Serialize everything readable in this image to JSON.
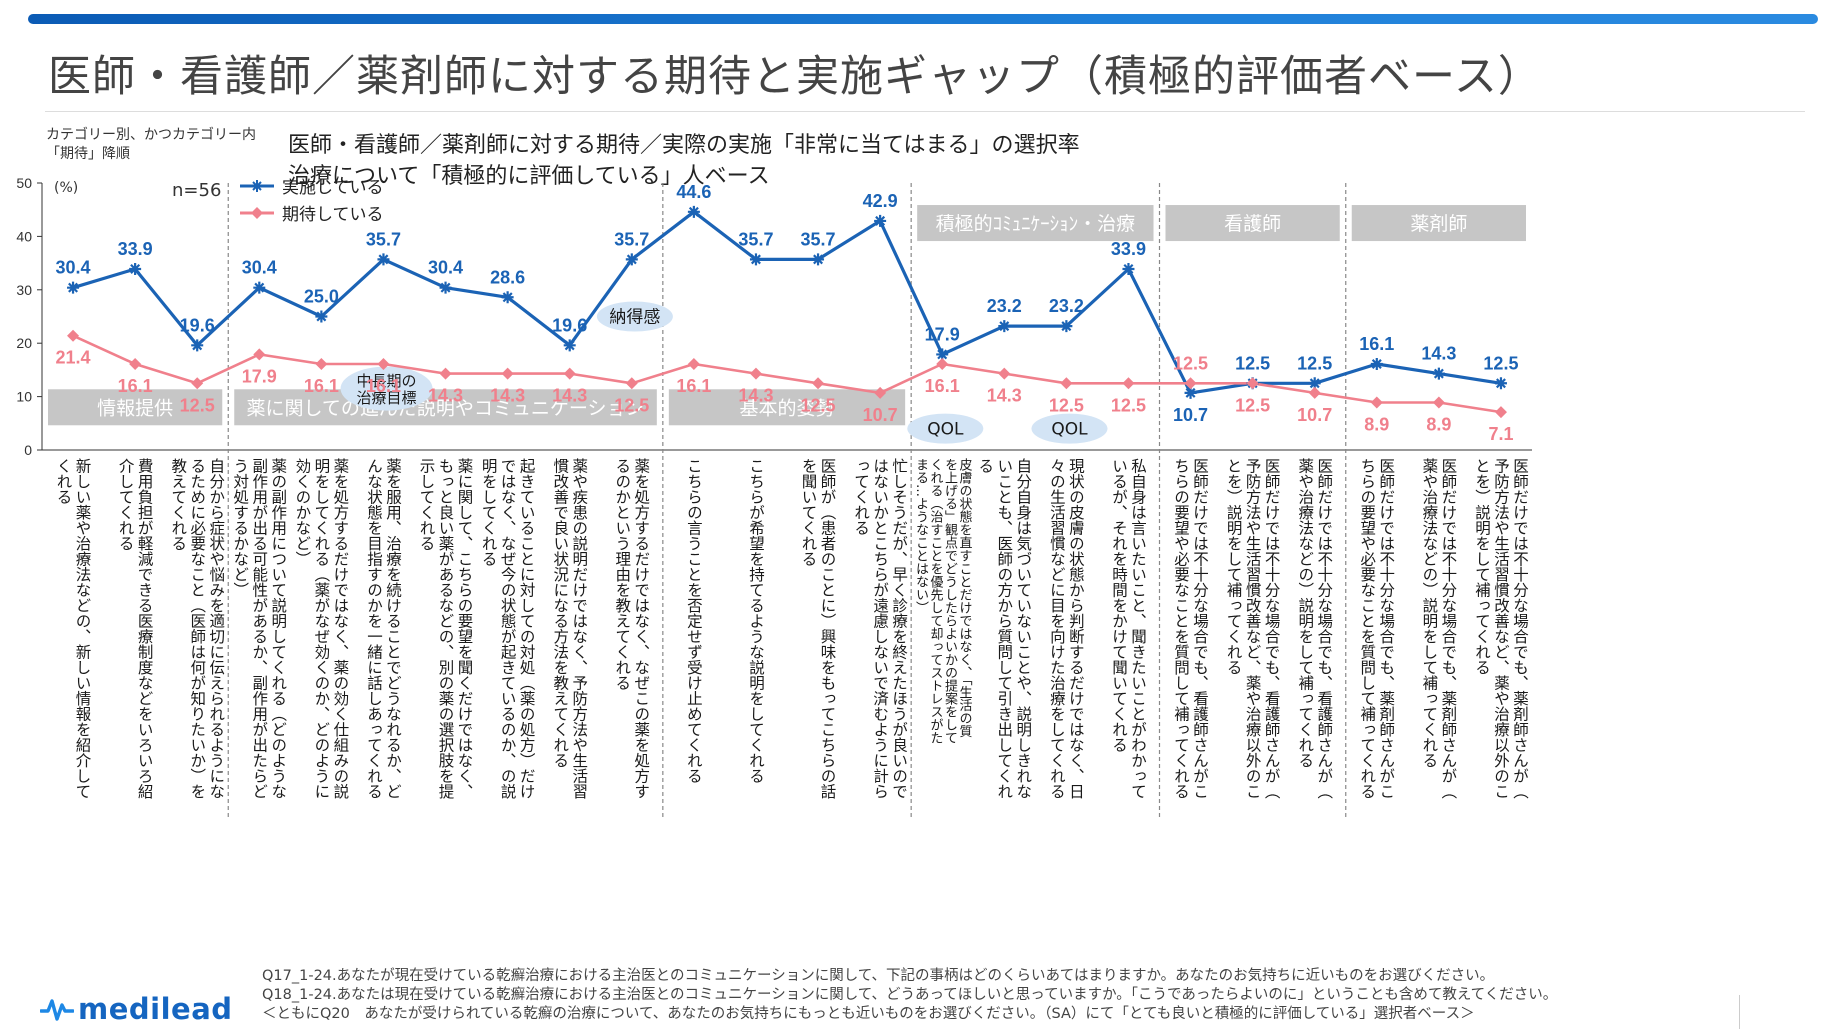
{
  "page": {
    "title": "医師・看護師／薬剤師に対する期待と実施ギャップ（積極的評価者ベース）",
    "note_lines": [
      "カテゴリー別、かつカテゴリー内",
      "「期待」降順"
    ],
    "unit": "(%)",
    "n": "n=56",
    "subtitle_lines": [
      "医師・看護師／薬剤師に対する期待／実際の実施「非常に当てはまる」の選択率",
      "治療について「積極的に評価している」人ベース"
    ],
    "footer_lines": [
      "Q17_1-24.あなたが現在受けている乾癬治療における主治医とのコミュニケーションに関して、下記の事柄はどのくらいあてはまりますか。あなたのお気持ちに近いものをお選びください。",
      "Q18_1-24.あなたは現在受けている乾癬治療における主治医とのコミュニケーションに関して、どうあってほしいと思っていますか。「こうであったらよいのに」ということも含めて教えてください。",
      "＜ともにQ20　あなたが受けられている乾癬の治療について、あなたのお気持ちにもっとも近いものをお選びください。（SA）にて「とても良いと積極的に評価している」選択者ベース＞"
    ],
    "logo_text": "medilead",
    "colors": {
      "jisshi": "#1b63b5",
      "kitai": "#f0808c",
      "category_bg": "#c6c6c6",
      "bubble_bg": "#d3e4f5"
    }
  },
  "chart_data": {
    "type": "line",
    "ylim": [
      0,
      50
    ],
    "yticks": [
      0,
      10,
      20,
      30,
      40,
      50
    ],
    "categories": [
      "新しい薬や治療法などの、新しい情報を紹介してくれる",
      "費用負担が軽減できる医療制度などをいろいろ紹介してくれる",
      "自分から症状や悩みを適切に伝えられるようになるために必要なこと（医師は何が知りたいか）を教えてくれる",
      "薬の副作用について説明してくれる（どのような副作用が出る可能性があるか、副作用が出たらどう対処するかなど）",
      "薬を処方するだけではなく、薬の効く仕組みの説明をしてくれる（薬がなぜ効くのか、どのように効くのかなど）",
      "薬を服用、治療を続けることでどうなれるか、どんな状態を目指すのかを一緒に話しあってくれる",
      "薬に関して、こちらの要望を聞くだけではなく、もっと良い薬があるなどの、別の薬の選択肢を提示してくれる",
      "起きていることに対しての対処（薬の処方）だけではなく、なぜ今の状態が起きているのか、の説明をしてくれる",
      "薬や疾患の説明だけではなく、予防方法や生活習慣改善で良い状況になる方法を教えてくれる",
      "薬を処方するだけではなく、なぜこの薬を処方するのかという理由を教えてくれる",
      "こちらの言うことを否定せず受け止めてくれる",
      "こちらが希望を持てるような説明をしてくれる",
      "医師が（患者のことに）興味をもってこちらの話を聞いてくれる",
      "忙しそうだが、早く診療を終えたほうが良いのではないかとこちらが遠慮しないで済むように計らってくれる",
      "皮膚の状態を直すことだけではなく、「生活の質を上げる」観点でどうしたらよいかの提案をしてくれる（治すことを優先して却ってストレスがたまる…ようなことはない）",
      "自分自身は気づいていないことや、説明しきれないことも、医師の方から質問して引き出してくれる",
      "現状の皮膚の状態から判断するだけではなく、日々の生活習慣などに目を向けた治療をしてくれる",
      "私自身は言いたいこと、聞きたいことがわかっているが、それを時間をかけて聞いてくれる",
      "医師だけでは不十分な場合でも、看護師さんがこちらの要望や必要なことを質問して補ってくれる",
      "医師だけでは不十分な場合でも、看護師さんが（予防方法や生活習慣改善など、薬や治療以外のことを）説明をして補ってくれる",
      "医師だけでは不十分な場合でも、看護師さんが（薬や治療法などの）説明をして補ってくれる",
      "医師だけでは不十分な場合でも、薬剤師さんがこちらの要望や必要なことを質問して補ってくれる",
      "医師だけでは不十分な場合でも、薬剤師さんが（薬や治療法などの）説明をして補ってくれる",
      "医師だけでは不十分な場合でも、薬剤師さんが（予防方法や生活習慣改善など、薬や治療以外のことを）説明をして補ってくれる"
    ],
    "series": [
      {
        "name": "実施している",
        "color": "#1b63b5",
        "marker": "asterisk",
        "values": [
          30.4,
          33.9,
          19.6,
          30.4,
          25.0,
          35.7,
          30.4,
          28.6,
          19.6,
          35.7,
          44.6,
          35.7,
          35.7,
          42.9,
          17.9,
          23.2,
          23.2,
          33.9,
          10.7,
          12.5,
          12.5,
          16.1,
          14.3,
          12.5
        ]
      },
      {
        "name": "期待している",
        "color": "#f0808c",
        "marker": "diamond",
        "values": [
          21.4,
          16.1,
          12.5,
          17.9,
          16.1,
          16.1,
          14.3,
          14.3,
          14.3,
          12.5,
          16.1,
          14.3,
          12.5,
          10.7,
          16.1,
          14.3,
          12.5,
          12.5,
          12.5,
          12.5,
          10.7,
          8.9,
          8.9,
          7.1
        ]
      }
    ],
    "jisshi_label_text": [
      "30.4",
      "33.9",
      "19.6",
      "30.4",
      "25.0",
      "35.7",
      "30.4",
      "28.6",
      "19.6",
      "35.7",
      "44.6",
      "35.7",
      "35.7",
      "42.9",
      "17.9",
      "23.2",
      "23.2",
      "33.9",
      "10.7",
      "12.5",
      "12.5",
      "16.1",
      "14.3",
      "12.5"
    ],
    "kitai_label_text": [
      "21.4",
      "16.1",
      "12.5",
      "17.9",
      "16.1",
      "16.1",
      "14.3",
      "14.3",
      "14.3",
      "12.5",
      "16.1",
      "14.3",
      "12.5",
      "10.7",
      "16.1",
      "14.3",
      "12.5",
      "12.5",
      "12.5",
      "12.5",
      "10.7",
      "8.9",
      "8.9",
      "7.1"
    ],
    "groups": [
      {
        "label": "情報提供",
        "start": 0,
        "end": 2,
        "label_y": 8
      },
      {
        "label": "薬に関しての進んだ説明やコミュニケーション",
        "start": 3,
        "end": 9,
        "label_y": 8
      },
      {
        "label": "基本的姿勢",
        "start": 10,
        "end": 13,
        "label_y": 8
      },
      {
        "label": "積極的ｺﾐｭﾆｹｰｼｮﾝ・治療",
        "start": 14,
        "end": 17,
        "label_y": 42.5
      },
      {
        "label": "看護師",
        "start": 18,
        "end": 20,
        "label_y": 42.5
      },
      {
        "label": "薬剤師",
        "start": 21,
        "end": 23,
        "label_y": 42.5
      }
    ],
    "annotations": [
      {
        "text": "納得感",
        "index": 9.05,
        "y": 25
      },
      {
        "text": "中長期の\n治療目標",
        "index": 5.05,
        "y": 11.5
      },
      {
        "text": "QOL",
        "index": 14.05,
        "y": 4
      },
      {
        "text": "QOL",
        "index": 16.05,
        "y": 4
      }
    ],
    "grid": false,
    "legend": "top-left"
  }
}
